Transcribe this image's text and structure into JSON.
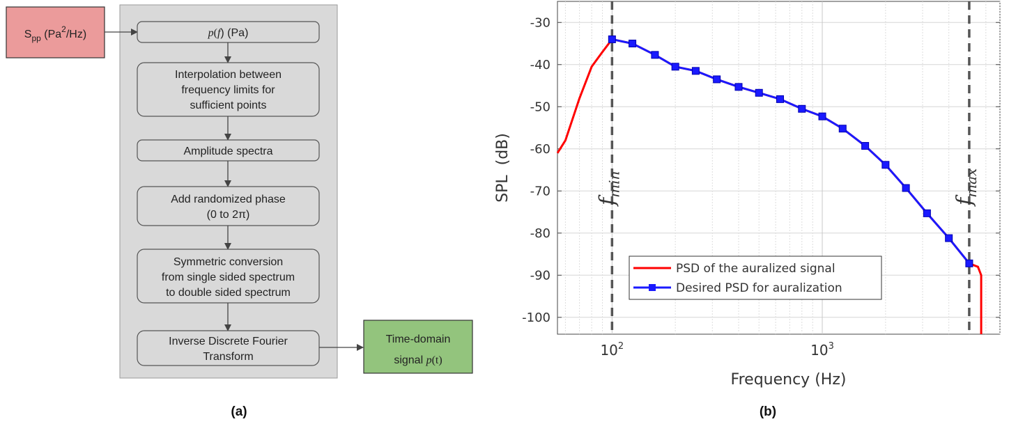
{
  "panel_a": {
    "label": "(a)",
    "input_box": {
      "main": "S",
      "sub": "pp",
      "rest1": " (Pa",
      "sup": "2",
      "rest2": "/Hz)",
      "color": "#eb9b9b"
    },
    "steps": [
      {
        "id": "pf",
        "line1_italic": "p",
        "line1_a": "(",
        "line1_b": "f",
        "line1_c": ") (Pa)"
      },
      {
        "id": "interp",
        "lines": [
          "Interpolation between",
          "frequency limits for",
          "sufficient points"
        ]
      },
      {
        "id": "amp",
        "lines": [
          "Amplitude spectra"
        ]
      },
      {
        "id": "phase",
        "lines": [
          "Add randomized phase",
          "(0 to 2π)"
        ]
      },
      {
        "id": "sym",
        "lines": [
          "Symmetric conversion",
          "from single sided spectrum",
          "to double sided spectrum"
        ]
      },
      {
        "id": "idft",
        "lines": [
          "Inverse Discrete Fourier",
          "Transform"
        ]
      }
    ],
    "output_box": {
      "line1": "Time-domain",
      "line2a": "signal ",
      "line2b": "p",
      "line2c": "(t)",
      "color": "#93c47d"
    },
    "panel_color": "#d9d9d9"
  },
  "panel_b": {
    "label": "(b)",
    "ylabel": "SPL  (dB)",
    "xlabel": "Frequency (Hz)",
    "y_ticks": [
      "-30",
      "-40",
      "-50",
      "-60",
      "-70",
      "-80",
      "-90",
      "-100"
    ],
    "x_ticks": [
      {
        "base": "10",
        "exp": "2"
      },
      {
        "base": "10",
        "exp": "3"
      }
    ],
    "fmin_label": "f",
    "fmin_sub": "min",
    "fmax_label": "f",
    "fmax_sub": "max",
    "legend": [
      "PSD of the auralized signal",
      "Desired PSD for auralization"
    ],
    "colors": {
      "auralized": "#ff0000",
      "desired": "#1a1aff",
      "vline": "#555555"
    }
  },
  "chart_data": {
    "type": "line",
    "xscale": "log",
    "xlim": [
      55,
      7000
    ],
    "ylim": [
      -104,
      -25
    ],
    "xlabel": "Frequency (Hz)",
    "ylabel": "SPL  (dB)",
    "grid": true,
    "legend_position": "bottom-left",
    "vlines": [
      {
        "x": 100,
        "label": "f_min"
      },
      {
        "x": 5000,
        "label": "f_max"
      }
    ],
    "series": [
      {
        "name": "PSD of the auralized signal",
        "x": [
          55,
          60,
          70,
          80,
          90,
          100,
          125,
          160,
          200,
          250,
          315,
          400,
          500,
          630,
          800,
          1000,
          1250,
          1600,
          2000,
          2500,
          3150,
          4000,
          5000,
          5500,
          5700,
          5700
        ],
        "y": [
          -61,
          -58,
          -48,
          -40.5,
          -37,
          -34,
          -35,
          -37.7,
          -40.5,
          -41.5,
          -43.5,
          -45.3,
          -46.7,
          -48.2,
          -50.5,
          -52.3,
          -55.2,
          -59.3,
          -63.8,
          -69.3,
          -75.3,
          -81.2,
          -87.2,
          -88,
          -90,
          -104
        ]
      },
      {
        "name": "Desired PSD for auralization",
        "x": [
          100,
          125,
          160,
          200,
          250,
          315,
          400,
          500,
          630,
          800,
          1000,
          1250,
          1600,
          2000,
          2500,
          3150,
          4000,
          5000
        ],
        "y": [
          -34,
          -35,
          -37.7,
          -40.5,
          -41.5,
          -43.5,
          -45.3,
          -46.7,
          -48.2,
          -50.5,
          -52.3,
          -55.2,
          -59.3,
          -63.8,
          -69.3,
          -75.3,
          -81.2,
          -87.2
        ]
      }
    ]
  }
}
